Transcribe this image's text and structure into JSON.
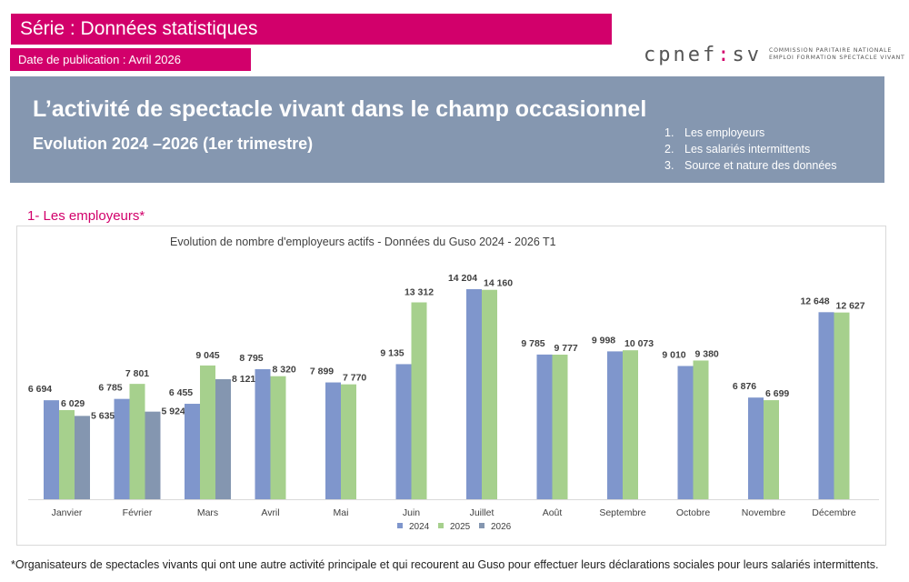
{
  "header": {
    "serie": "Série : Données statistiques",
    "publication_date": "Date de publication : Avril 2026",
    "logo": {
      "word_left": "cpnef",
      "word_colon": ":",
      "word_right": "sv",
      "tagline_1": "COMMISSION PARITAIRE NATIONALE",
      "tagline_2": "EMPLOI FORMATION SPECTACLE VIVANT"
    }
  },
  "title_box": {
    "title": "L’activité de spectacle vivant dans le champ occasionnel",
    "subtitle": "Evolution 2024 –2026 (1er trimestre)",
    "toc": [
      {
        "num": "1.",
        "label": "Les employeurs"
      },
      {
        "num": "2.",
        "label": "Les salariés intermittents"
      },
      {
        "num": "3.",
        "label": "Source et nature des données"
      }
    ]
  },
  "section": {
    "heading": "1-   Les employeurs*"
  },
  "colors": {
    "brand": "#d2006b",
    "title_box": "#8597b0",
    "s2024": "#7f96cc",
    "s2025": "#a6d08d",
    "s2026": "#8496b0"
  },
  "chart_data": {
    "type": "bar",
    "title": "Evolution de nombre d'employeurs actifs - Données du Guso  2024 -  2026 T1",
    "xlabel": "",
    "ylabel": "",
    "ylim": [
      0,
      14500
    ],
    "grid": false,
    "legend_position": "bottom",
    "categories": [
      "Janvier",
      "Février",
      "Mars",
      "Avril",
      "Mai",
      "Juin",
      "Juillet",
      "Août",
      "Septembre",
      "Octobre",
      "Novembre",
      "Décembre"
    ],
    "series": [
      {
        "name": "2024",
        "color": "#7f96cc",
        "values": [
          6694,
          6785,
          6455,
          8795,
          7899,
          9135,
          14204,
          9785,
          9998,
          9010,
          6876,
          12648
        ],
        "labels": [
          "6 694",
          "6 785",
          "6 455",
          "8 795",
          "7 899",
          "9 135",
          "14 204",
          "9 785",
          "9 998",
          "9 010",
          "6 876",
          "12 648"
        ]
      },
      {
        "name": "2025",
        "color": "#a6d08d",
        "values": [
          6029,
          7801,
          9045,
          8320,
          7770,
          13312,
          14160,
          9777,
          10073,
          9380,
          6699,
          12627
        ],
        "labels": [
          "6 029",
          "7 801",
          "9 045",
          "8 320",
          "7 770",
          "13 312",
          "14 160",
          "9 777",
          "10 073",
          "9 380",
          "6 699",
          "12 627"
        ]
      },
      {
        "name": "2026",
        "color": "#8496b0",
        "values": [
          5635,
          5924,
          8121,
          null,
          null,
          null,
          null,
          null,
          null,
          null,
          null,
          null
        ],
        "labels": [
          "5 635",
          "5 924",
          "8 121",
          null,
          null,
          null,
          null,
          null,
          null,
          null,
          null,
          null
        ]
      }
    ]
  },
  "footnote": "*Organisateurs de spectacles vivants qui ont une autre activité principale et qui recourent au Guso pour effectuer leurs déclarations sociales pour leurs salariés intermittents."
}
